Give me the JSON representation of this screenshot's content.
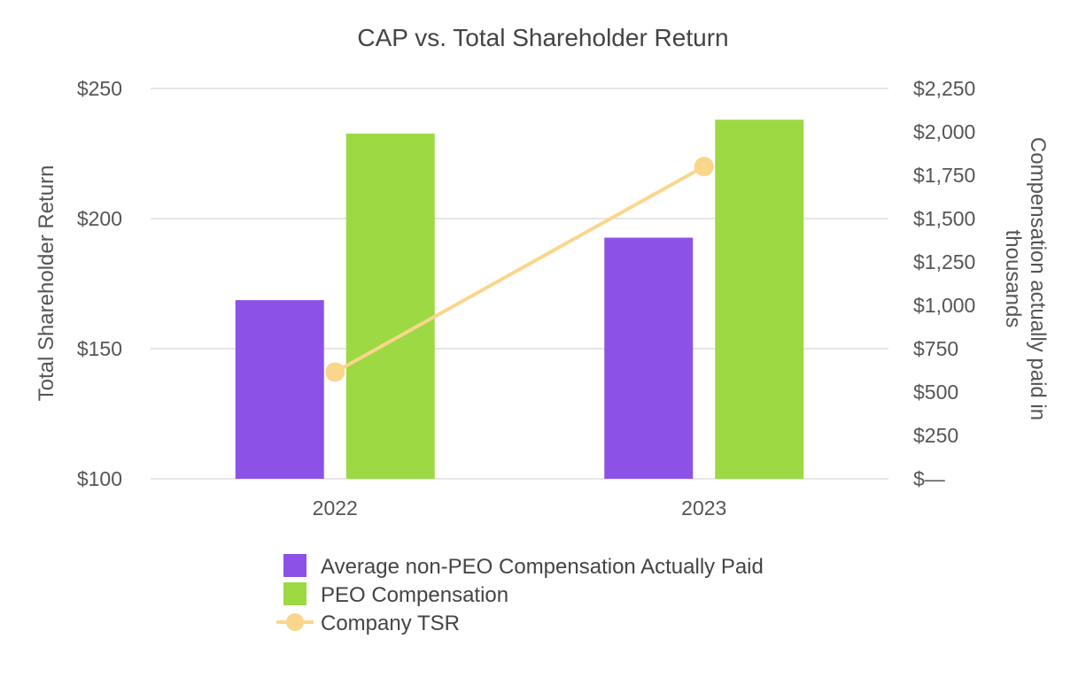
{
  "chart_data": {
    "type": "bar",
    "title": "CAP vs. Total Shareholder Return",
    "categories": [
      "2022",
      "2023"
    ],
    "y_left": {
      "label": "Total Shareholder Return",
      "range": [
        100,
        250
      ],
      "ticks": [
        100,
        150,
        200,
        250
      ],
      "tick_labels": [
        "$100",
        "$150",
        "$200",
        "$250"
      ]
    },
    "y_right": {
      "label_lines": [
        "Compensation actually paid in",
        "thousands"
      ],
      "range": [
        0,
        2250
      ],
      "ticks": [
        0,
        250,
        500,
        750,
        1000,
        1250,
        1500,
        1750,
        2000,
        2250
      ],
      "tick_labels": [
        "$—",
        "$250",
        "$500",
        "$750",
        "$1,000",
        "$1,250",
        "$1,500",
        "$1,750",
        "$2,000",
        "$2,250"
      ]
    },
    "series": [
      {
        "name": "Average non-PEO Compensation Actually Paid",
        "kind": "bar",
        "axis": "right",
        "color": "#8C52E8",
        "values": [
          1030,
          1390
        ]
      },
      {
        "name": "PEO Compensation",
        "kind": "bar",
        "axis": "right",
        "color": "#9CD943",
        "values": [
          1990,
          2070
        ]
      },
      {
        "name": "Company TSR",
        "kind": "line",
        "axis": "left",
        "color": "#FAD68C",
        "values": [
          141,
          220
        ]
      }
    ],
    "legend_position": "bottom"
  }
}
